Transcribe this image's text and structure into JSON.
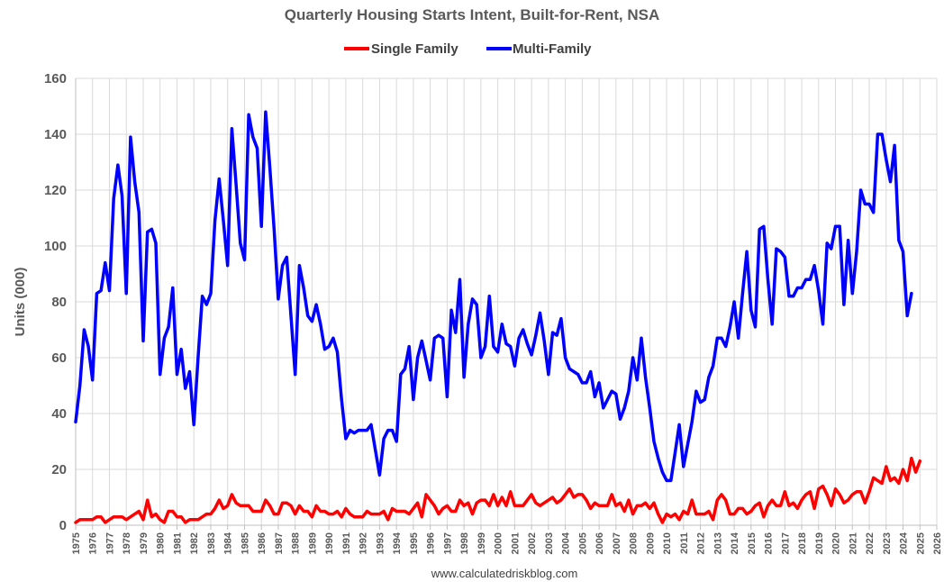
{
  "chart_data": {
    "type": "line",
    "title": "Quarterly Housing Starts Intent, Built-for-Rent, NSA",
    "xlabel": "",
    "ylabel": "Units (000)",
    "ylim": [
      0,
      160
    ],
    "yticks": [
      "0",
      "20",
      "40",
      "60",
      "80",
      "100",
      "120",
      "140",
      "160"
    ],
    "xlim": [
      1975,
      2026
    ],
    "xticks": [
      "1975",
      "1976",
      "1977",
      "1978",
      "1979",
      "1980",
      "1981",
      "1982",
      "1983",
      "1984",
      "1985",
      "1986",
      "1987",
      "1988",
      "1989",
      "1990",
      "1991",
      "1992",
      "1993",
      "1994",
      "1995",
      "1996",
      "1997",
      "1998",
      "1999",
      "2000",
      "2001",
      "2002",
      "2003",
      "2004",
      "2005",
      "2006",
      "2007",
      "2008",
      "2009",
      "2010",
      "2011",
      "2012",
      "2013",
      "2014",
      "2015",
      "2016",
      "2017",
      "2018",
      "2019",
      "2020",
      "2021",
      "2022",
      "2023",
      "2024",
      "2025",
      "2026"
    ],
    "legend_position": "top",
    "grid": true,
    "source": "www.calculatedriskblog.com",
    "start_year": 1975,
    "quarter_step": 0.25,
    "series": [
      {
        "name": "Single Family",
        "color": "#ff0000",
        "values": [
          1,
          2,
          2,
          2,
          2,
          3,
          3,
          1,
          2,
          3,
          3,
          3,
          2,
          3,
          4,
          5,
          2,
          9,
          3,
          4,
          2,
          1,
          5,
          5,
          3,
          3,
          1,
          2,
          2,
          2,
          3,
          4,
          4,
          6,
          9,
          6,
          7,
          11,
          8,
          7,
          7,
          7,
          5,
          5,
          5,
          9,
          7,
          4,
          4,
          8,
          8,
          7,
          4,
          7,
          5,
          5,
          3,
          7,
          5,
          5,
          4,
          4,
          5,
          3,
          6,
          4,
          3,
          3,
          3,
          5,
          4,
          4,
          4,
          5,
          2,
          6,
          5,
          5,
          5,
          4,
          6,
          8,
          3,
          11,
          9,
          7,
          4,
          6,
          7,
          5,
          5,
          9,
          7,
          8,
          4,
          8,
          9,
          9,
          7,
          11,
          7,
          10,
          7,
          12,
          7,
          7,
          7,
          9,
          11,
          8,
          7,
          8,
          9,
          10,
          8,
          9,
          11,
          13,
          10,
          11,
          11,
          9,
          6,
          8,
          7,
          7,
          7,
          11,
          7,
          8,
          5,
          9,
          4,
          7,
          7,
          8,
          6,
          8,
          4,
          1,
          4,
          3,
          4,
          2,
          5,
          4,
          9,
          4,
          4,
          4,
          5,
          2,
          9,
          11,
          9,
          4,
          4,
          6,
          6,
          4,
          5,
          7,
          8,
          3,
          7,
          9,
          7,
          7,
          12,
          7,
          8,
          6,
          9,
          11,
          12,
          6,
          13,
          14,
          11,
          7,
          13,
          11,
          8,
          9,
          11,
          12,
          12,
          8,
          12,
          17,
          16,
          15,
          21,
          16,
          17,
          15,
          20,
          16,
          24,
          19,
          23
        ]
      },
      {
        "name": "Multi-Family",
        "color": "#0000ff",
        "values": [
          37,
          50,
          70,
          64,
          52,
          83,
          84,
          94,
          84,
          117,
          129,
          118,
          83,
          139,
          123,
          112,
          66,
          105,
          106,
          101,
          54,
          67,
          71,
          85,
          54,
          63,
          49,
          55,
          36,
          60,
          82,
          79,
          83,
          109,
          124,
          109,
          93,
          142,
          122,
          101,
          95,
          147,
          139,
          135,
          107,
          148,
          128,
          106,
          81,
          93,
          96,
          75,
          54,
          93,
          85,
          75,
          73,
          79,
          72,
          63,
          64,
          67,
          62,
          45,
          31,
          34,
          33,
          34,
          34,
          34,
          36,
          27,
          18,
          31,
          34,
          34,
          30,
          54,
          56,
          64,
          45,
          60,
          66,
          59,
          52,
          67,
          68,
          67,
          46,
          77,
          69,
          88,
          53,
          72,
          81,
          79,
          60,
          64,
          82,
          64,
          62,
          72,
          65,
          64,
          57,
          67,
          70,
          65,
          61,
          68,
          76,
          66,
          54,
          69,
          68,
          74,
          60,
          56,
          55,
          54,
          51,
          51,
          55,
          46,
          51,
          42,
          45,
          48,
          47,
          38,
          42,
          48,
          60,
          52,
          67,
          53,
          42,
          30,
          24,
          19,
          16,
          16,
          26,
          36,
          21,
          29,
          37,
          48,
          44,
          45,
          53,
          57,
          67,
          67,
          64,
          71,
          80,
          67,
          83,
          98,
          77,
          71,
          106,
          107,
          88,
          72,
          99,
          98,
          96,
          82,
          82,
          85,
          85,
          88,
          88,
          93,
          84,
          72,
          101,
          99,
          107,
          107,
          79,
          102,
          83,
          98,
          120,
          115,
          115,
          112,
          140,
          140,
          131,
          123,
          136,
          102,
          98,
          75,
          83
        ]
      }
    ]
  }
}
